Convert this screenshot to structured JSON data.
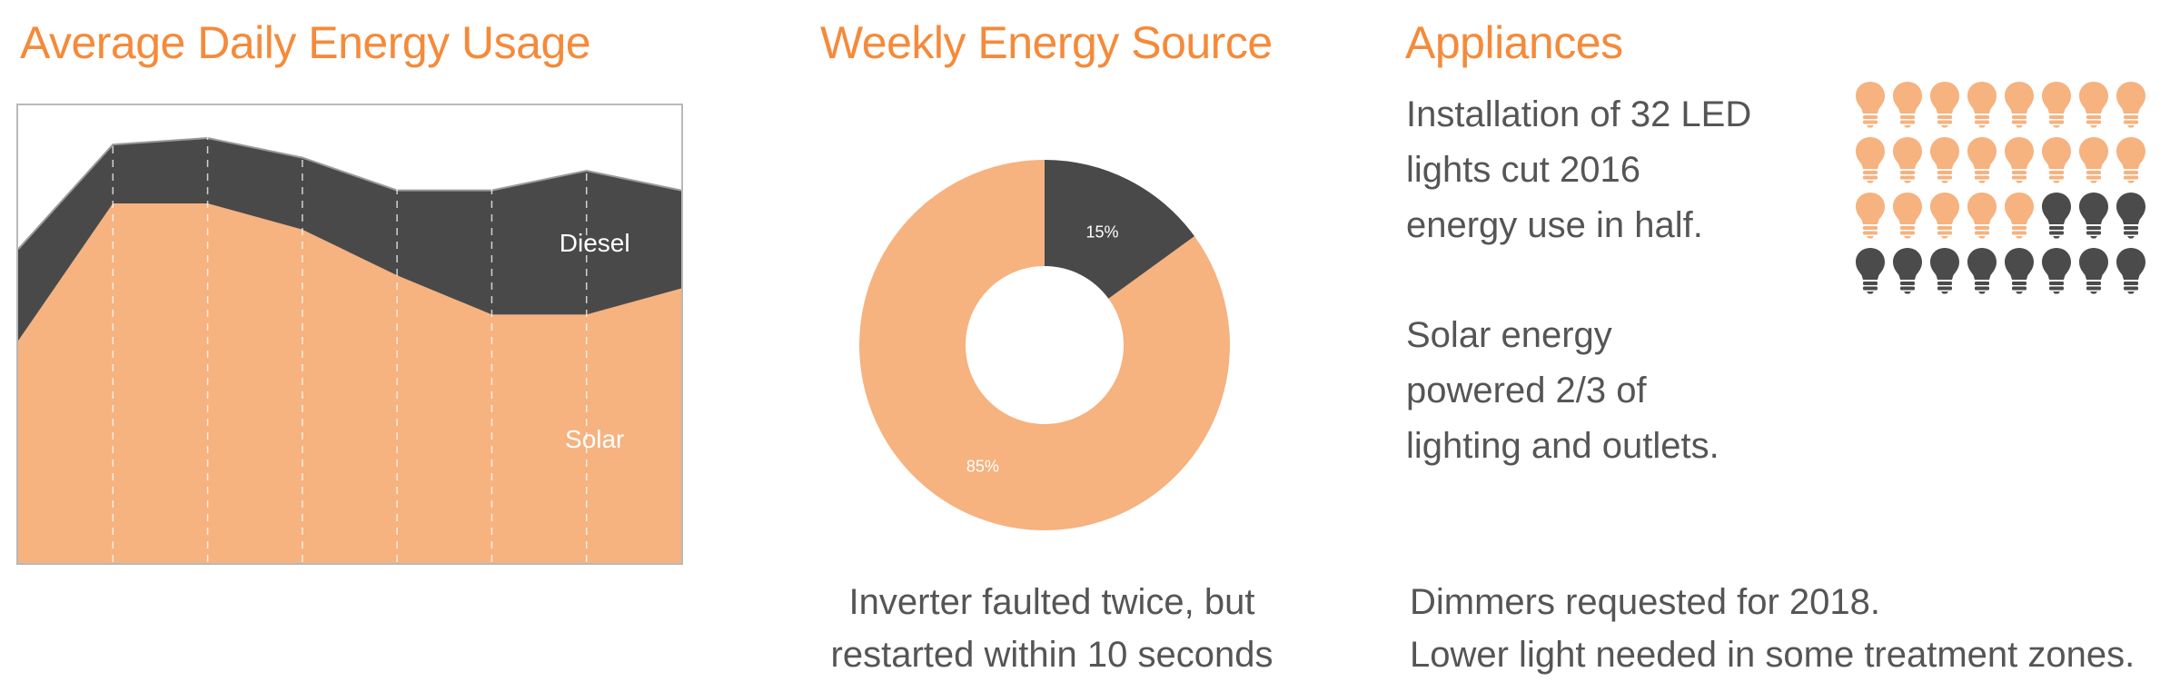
{
  "headings": {
    "usage": "Average Daily Energy Usage",
    "source": "Weekly Energy Source",
    "appliances": "Appliances"
  },
  "captions": {
    "inverter_line1": "Inverter faulted twice, but",
    "inverter_line2": "restarted within 10 seconds",
    "appliances_line1": "Installation of 32 LED",
    "appliances_line2": "lights cut 2016",
    "appliances_line3": "energy use in half.",
    "appliances_line4": "Solar energy",
    "appliances_line5": "powered 2/3 of",
    "appliances_line6": "lighting and outlets.",
    "dimmers_line1": "Dimmers requested for 2018.",
    "dimmers_line2": "Lower light needed in some treatment zones."
  },
  "colors": {
    "accent": "#f58a3a",
    "solar": "#f6b27f",
    "diesel": "#494949",
    "bulb_on": "#f6b27f",
    "bulb_off": "#4b4b4b"
  },
  "icons": {
    "bulb": "lightbulb-icon"
  },
  "bulbs": {
    "total": 32,
    "lit": 21
  },
  "chart_data": [
    {
      "type": "area",
      "stacked": true,
      "x": [
        0,
        1,
        2,
        3,
        4,
        5,
        6,
        7
      ],
      "series": [
        {
          "name": "Solar",
          "values": [
            34,
            55,
            55,
            51,
            44,
            38,
            38,
            42
          ]
        },
        {
          "name": "Diesel",
          "values": [
            14,
            9,
            10,
            11,
            13,
            19,
            22,
            15
          ]
        }
      ],
      "ylim": [
        0,
        70
      ],
      "grid": "vertical dashed",
      "legend": "inline labels"
    },
    {
      "type": "pie",
      "donut": true,
      "slices": [
        {
          "label": "15%",
          "value": 15
        },
        {
          "label": "85%",
          "value": 85
        }
      ]
    }
  ]
}
